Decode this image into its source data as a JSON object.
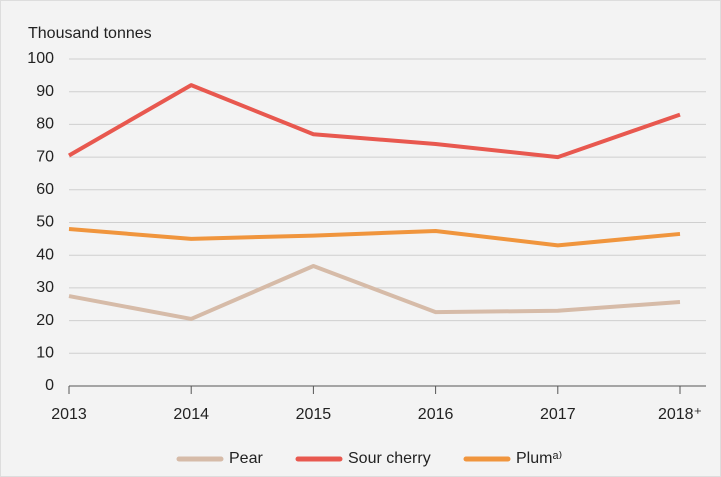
{
  "chart_data": {
    "type": "line",
    "y_axis_title": "Thousand tonnes",
    "categories": [
      "2013",
      "2014",
      "2015",
      "2016",
      "2017",
      "2018⁺"
    ],
    "series": [
      {
        "name": "Pear",
        "color": "#d6bba8",
        "values": [
          27.5,
          20.5,
          36.7,
          22.6,
          23,
          25.7
        ]
      },
      {
        "name": "Sour cherry",
        "color": "#e8584f",
        "values": [
          70.5,
          92,
          77,
          74,
          70,
          83
        ]
      },
      {
        "name": "Plumᵃ⁾",
        "color": "#f0953d",
        "values": [
          48,
          45,
          46,
          47.4,
          43,
          46.5
        ]
      }
    ],
    "ylim": [
      0,
      100
    ],
    "yticks": [
      0,
      10,
      20,
      30,
      40,
      50,
      60,
      70,
      80,
      90,
      100
    ],
    "grid": true,
    "legend": "bottom"
  }
}
